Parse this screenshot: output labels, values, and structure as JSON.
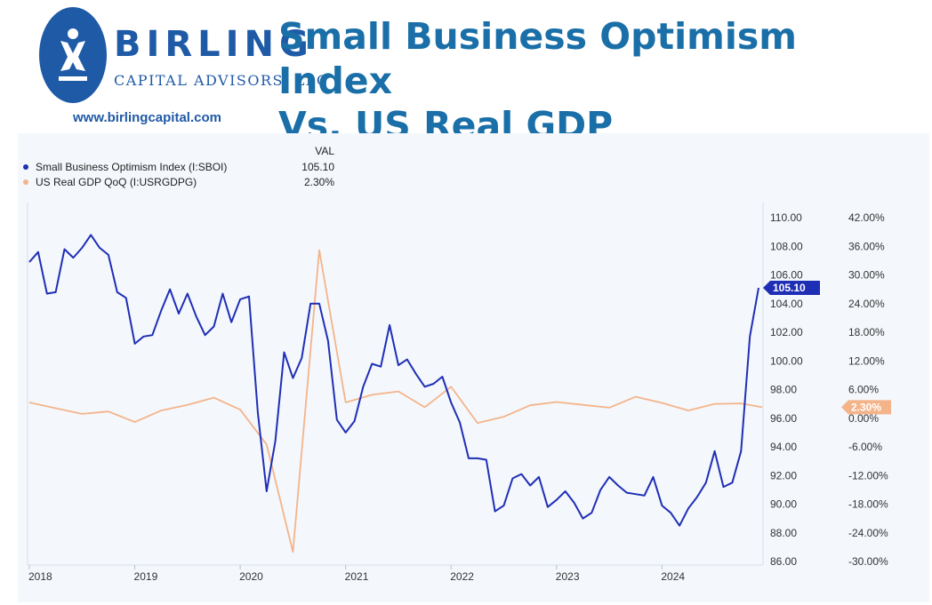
{
  "header": {
    "logo": {
      "name": "BIRLING",
      "subtitle": "CAPITAL ADVISORS, LLC",
      "url": "www.birlingcapital.com"
    },
    "title_line1": "Small Business Optimism Index",
    "title_line2": "Vs. US Real GDP"
  },
  "legend": {
    "value_header": "VAL",
    "items": [
      {
        "label": "Small Business Optimism Index (I:SBOI)",
        "value": "105.10",
        "color": "#1f2fb5"
      },
      {
        "label": "US Real GDP QoQ (I:USRGDPG)",
        "value": "2.30%",
        "color": "#f4b48a"
      }
    ]
  },
  "chart_data": {
    "type": "line",
    "x_ticks": [
      "2018",
      "2019",
      "2020",
      "2021",
      "2022",
      "2023",
      "2024"
    ],
    "y_left": {
      "ticks": [
        "110.00",
        "108.00",
        "106.00",
        "104.00",
        "102.00",
        "100.00",
        "98.00",
        "96.00",
        "94.00",
        "92.00",
        "90.00",
        "88.00",
        "86.00"
      ],
      "min": 86,
      "max": 110
    },
    "y_right": {
      "ticks": [
        "42.00%",
        "36.00%",
        "30.00%",
        "24.00%",
        "18.00%",
        "12.00%",
        "6.00%",
        "0.00%",
        "-6.00%",
        "-12.00%",
        "-18.00%",
        "-24.00%",
        "-30.00%"
      ],
      "min": -30,
      "max": 42
    },
    "series": [
      {
        "name": "Small Business Optimism Index (I:SBOI)",
        "axis": "left",
        "color": "#1f2fb5",
        "last_value": "105.10",
        "points": [
          [
            "2018-01",
            106.9
          ],
          [
            "2018-02",
            107.6
          ],
          [
            "2018-03",
            104.7
          ],
          [
            "2018-04",
            104.8
          ],
          [
            "2018-05",
            107.8
          ],
          [
            "2018-06",
            107.2
          ],
          [
            "2018-07",
            107.9
          ],
          [
            "2018-08",
            108.8
          ],
          [
            "2018-09",
            107.9
          ],
          [
            "2018-10",
            107.4
          ],
          [
            "2018-11",
            104.8
          ],
          [
            "2018-12",
            104.4
          ],
          [
            "2019-01",
            101.2
          ],
          [
            "2019-02",
            101.7
          ],
          [
            "2019-03",
            101.8
          ],
          [
            "2019-04",
            103.5
          ],
          [
            "2019-05",
            105.0
          ],
          [
            "2019-06",
            103.3
          ],
          [
            "2019-07",
            104.7
          ],
          [
            "2019-08",
            103.1
          ],
          [
            "2019-09",
            101.8
          ],
          [
            "2019-10",
            102.4
          ],
          [
            "2019-11",
            104.7
          ],
          [
            "2019-12",
            102.7
          ],
          [
            "2020-01",
            104.3
          ],
          [
            "2020-02",
            104.5
          ],
          [
            "2020-03",
            96.4
          ],
          [
            "2020-04",
            90.9
          ],
          [
            "2020-05",
            94.4
          ],
          [
            "2020-06",
            100.6
          ],
          [
            "2020-07",
            98.8
          ],
          [
            "2020-08",
            100.2
          ],
          [
            "2020-09",
            104.0
          ],
          [
            "2020-10",
            104.0
          ],
          [
            "2020-11",
            101.4
          ],
          [
            "2020-12",
            95.9
          ],
          [
            "2021-01",
            95.0
          ],
          [
            "2021-02",
            95.8
          ],
          [
            "2021-03",
            98.2
          ],
          [
            "2021-04",
            99.8
          ],
          [
            "2021-05",
            99.6
          ],
          [
            "2021-06",
            102.5
          ],
          [
            "2021-07",
            99.7
          ],
          [
            "2021-08",
            100.1
          ],
          [
            "2021-09",
            99.1
          ],
          [
            "2021-10",
            98.2
          ],
          [
            "2021-11",
            98.4
          ],
          [
            "2021-12",
            98.9
          ],
          [
            "2022-01",
            97.1
          ],
          [
            "2022-02",
            95.7
          ],
          [
            "2022-03",
            93.2
          ],
          [
            "2022-04",
            93.2
          ],
          [
            "2022-05",
            93.1
          ],
          [
            "2022-06",
            89.5
          ],
          [
            "2022-07",
            89.9
          ],
          [
            "2022-08",
            91.8
          ],
          [
            "2022-09",
            92.1
          ],
          [
            "2022-10",
            91.3
          ],
          [
            "2022-11",
            91.9
          ],
          [
            "2022-12",
            89.8
          ],
          [
            "2023-01",
            90.3
          ],
          [
            "2023-02",
            90.9
          ],
          [
            "2023-03",
            90.1
          ],
          [
            "2023-04",
            89.0
          ],
          [
            "2023-05",
            89.4
          ],
          [
            "2023-06",
            91.0
          ],
          [
            "2023-07",
            91.9
          ],
          [
            "2023-08",
            91.3
          ],
          [
            "2023-09",
            90.8
          ],
          [
            "2023-10",
            90.7
          ],
          [
            "2023-11",
            90.6
          ],
          [
            "2023-12",
            91.9
          ],
          [
            "2024-01",
            89.9
          ],
          [
            "2024-02",
            89.4
          ],
          [
            "2024-03",
            88.5
          ],
          [
            "2024-04",
            89.7
          ],
          [
            "2024-05",
            90.5
          ],
          [
            "2024-06",
            91.5
          ],
          [
            "2024-07",
            93.7
          ],
          [
            "2024-08",
            91.2
          ],
          [
            "2024-09",
            91.5
          ],
          [
            "2024-10",
            93.7
          ],
          [
            "2024-11",
            101.7
          ],
          [
            "2024-12",
            105.1
          ]
        ]
      },
      {
        "name": "US Real GDP QoQ (I:USRGDPG)",
        "axis": "right",
        "color": "#f4b48a",
        "last_value": "2.30%",
        "points": [
          [
            "2018-01",
            3.3
          ],
          [
            "2018-04",
            2.1
          ],
          [
            "2018-07",
            0.9
          ],
          [
            "2018-10",
            1.4
          ],
          [
            "2019-01",
            -0.8
          ],
          [
            "2019-04",
            1.6
          ],
          [
            "2019-07",
            2.8
          ],
          [
            "2019-10",
            4.3
          ],
          [
            "2020-01",
            1.8
          ],
          [
            "2020-04",
            -5.5
          ],
          [
            "2020-07",
            -28.0
          ],
          [
            "2020-10",
            35.2
          ],
          [
            "2021-01",
            3.3
          ],
          [
            "2021-04",
            4.9
          ],
          [
            "2021-07",
            5.6
          ],
          [
            "2021-10",
            2.3
          ],
          [
            "2022-01",
            6.6
          ],
          [
            "2022-04",
            -1.0
          ],
          [
            "2022-07",
            0.3
          ],
          [
            "2022-10",
            2.7
          ],
          [
            "2023-01",
            3.4
          ],
          [
            "2023-04",
            2.8
          ],
          [
            "2023-07",
            2.2
          ],
          [
            "2023-10",
            4.5
          ],
          [
            "2024-01",
            3.2
          ],
          [
            "2024-04",
            1.6
          ],
          [
            "2024-07",
            3.0
          ],
          [
            "2024-10",
            3.1
          ],
          [
            "2025-01",
            2.3
          ]
        ]
      }
    ],
    "grid": false,
    "legend_position": "top-left"
  }
}
